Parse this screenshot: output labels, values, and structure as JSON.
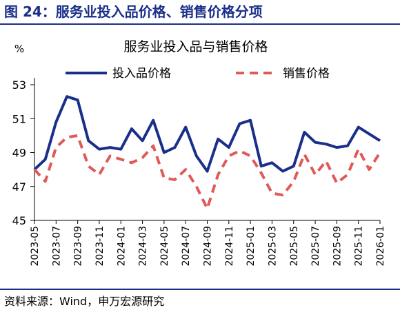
{
  "figure_title": "图 24：服务业投入品价格、销售价格分项",
  "source": "资料来源：Wind，申万宏源研究",
  "chart_data": {
    "type": "line",
    "title": "服务业投入品与销售价格",
    "ylabel": "%",
    "ylim": [
      45,
      53
    ],
    "yticks": [
      45,
      47,
      49,
      51,
      53
    ],
    "legend_position": "top",
    "x": [
      "2023-05",
      "2023-06",
      "2023-07",
      "2023-08",
      "2023-09",
      "2023-10",
      "2023-11",
      "2023-12",
      "2024-01",
      "2024-02",
      "2024-03",
      "2024-04",
      "2024-05",
      "2024-06",
      "2024-07",
      "2024-08",
      "2024-09",
      "2024-10",
      "2024-11",
      "2024-12",
      "2025-01",
      "2025-02",
      "2025-03",
      "2025-04",
      "2025-05",
      "2025-06",
      "2025-07",
      "2025-08",
      "2025-09",
      "2025-10",
      "2025-11",
      "2025-12",
      "2026-01"
    ],
    "xtick_labels": [
      "2023-05",
      "2023-07",
      "2023-09",
      "2023-11",
      "2024-01",
      "2024-03",
      "2024-05",
      "2024-07",
      "2024-09",
      "2024-11",
      "2025-01",
      "2025-03",
      "2025-05",
      "2025-07",
      "2025-09",
      "2025-11",
      "2026-01"
    ],
    "series": [
      {
        "name": "投入品价格",
        "color": "#1a2f8a",
        "style": "solid",
        "values": [
          48.0,
          48.6,
          50.8,
          52.3,
          52.1,
          49.7,
          49.2,
          49.3,
          49.2,
          50.4,
          49.7,
          50.9,
          49.0,
          49.3,
          50.5,
          48.8,
          47.9,
          49.8,
          49.3,
          50.7,
          50.9,
          48.2,
          48.4,
          47.9,
          48.2,
          50.2,
          49.6,
          49.5,
          49.3,
          49.4,
          50.5,
          50.1,
          49.7
        ]
      },
      {
        "name": "销售价格",
        "color": "#e05a5a",
        "style": "dashed",
        "values": [
          48.0,
          47.3,
          49.3,
          49.9,
          50.0,
          48.2,
          47.7,
          48.8,
          48.6,
          48.4,
          48.7,
          49.4,
          47.5,
          47.4,
          48.0,
          47.0,
          45.7,
          47.7,
          48.8,
          49.1,
          48.8,
          47.8,
          46.6,
          46.5,
          47.3,
          48.9,
          47.7,
          48.5,
          47.2,
          47.7,
          49.2,
          48.0,
          49.0
        ]
      }
    ]
  }
}
